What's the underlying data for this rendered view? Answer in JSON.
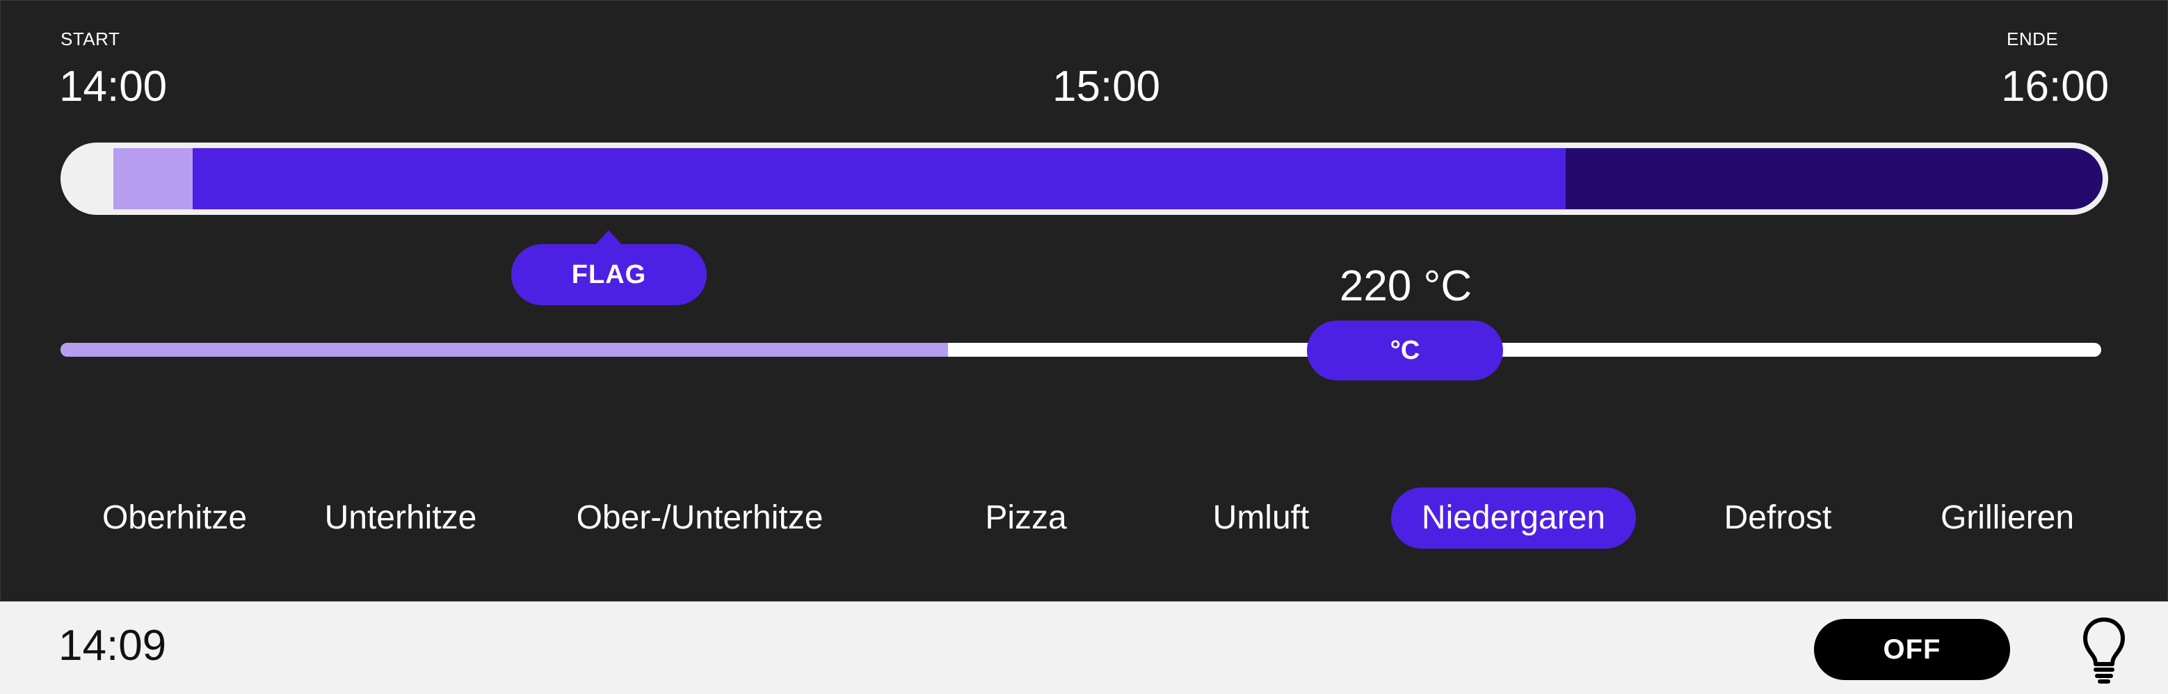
{
  "timeline": {
    "start_label": "START",
    "start_time": "14:00",
    "mid_time": "15:00",
    "end_label": "ENDE",
    "end_time": "16:00",
    "progress_done_fraction": 0.04,
    "progress_active_end_fraction": 0.73
  },
  "flag": {
    "label": "FLAG"
  },
  "temperature": {
    "value": "220 °C",
    "thumb_label": "°C",
    "fill_fraction": 0.435
  },
  "modes": [
    {
      "label": "Oberhitze",
      "active": false
    },
    {
      "label": "Unterhitze",
      "active": false
    },
    {
      "label": "Ober-/Unterhitze",
      "active": false
    },
    {
      "label": "Pizza",
      "active": false
    },
    {
      "label": "Umluft",
      "active": false
    },
    {
      "label": "Niedergaren",
      "active": true
    },
    {
      "label": "Defrost",
      "active": false
    },
    {
      "label": "Grillieren",
      "active": false
    }
  ],
  "footer": {
    "clock": "14:09",
    "power_label": "OFF",
    "light_icon": "lightbulb-icon"
  },
  "colors": {
    "accent": "#4d21e3",
    "accent_light": "#b79df0",
    "accent_dark": "#250a6e",
    "panel_bg": "#212121",
    "footer_bg": "#f2f2f2"
  }
}
